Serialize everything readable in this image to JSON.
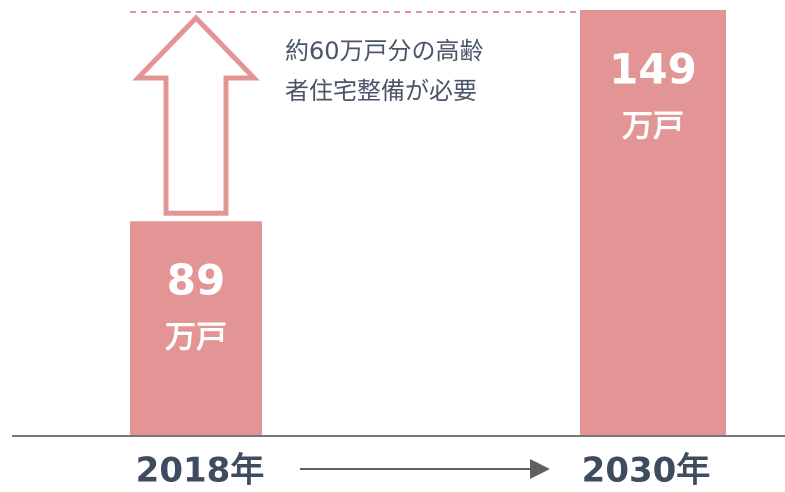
{
  "chart_data": {
    "type": "bar",
    "categories": [
      "2018年",
      "2030年"
    ],
    "values": [
      89,
      149
    ],
    "unit": "万戸",
    "color": "#e39595",
    "annotation": [
      "約60万戸分の高齢",
      "者住宅整備が必要"
    ],
    "ylim": [
      28,
      149
    ]
  }
}
